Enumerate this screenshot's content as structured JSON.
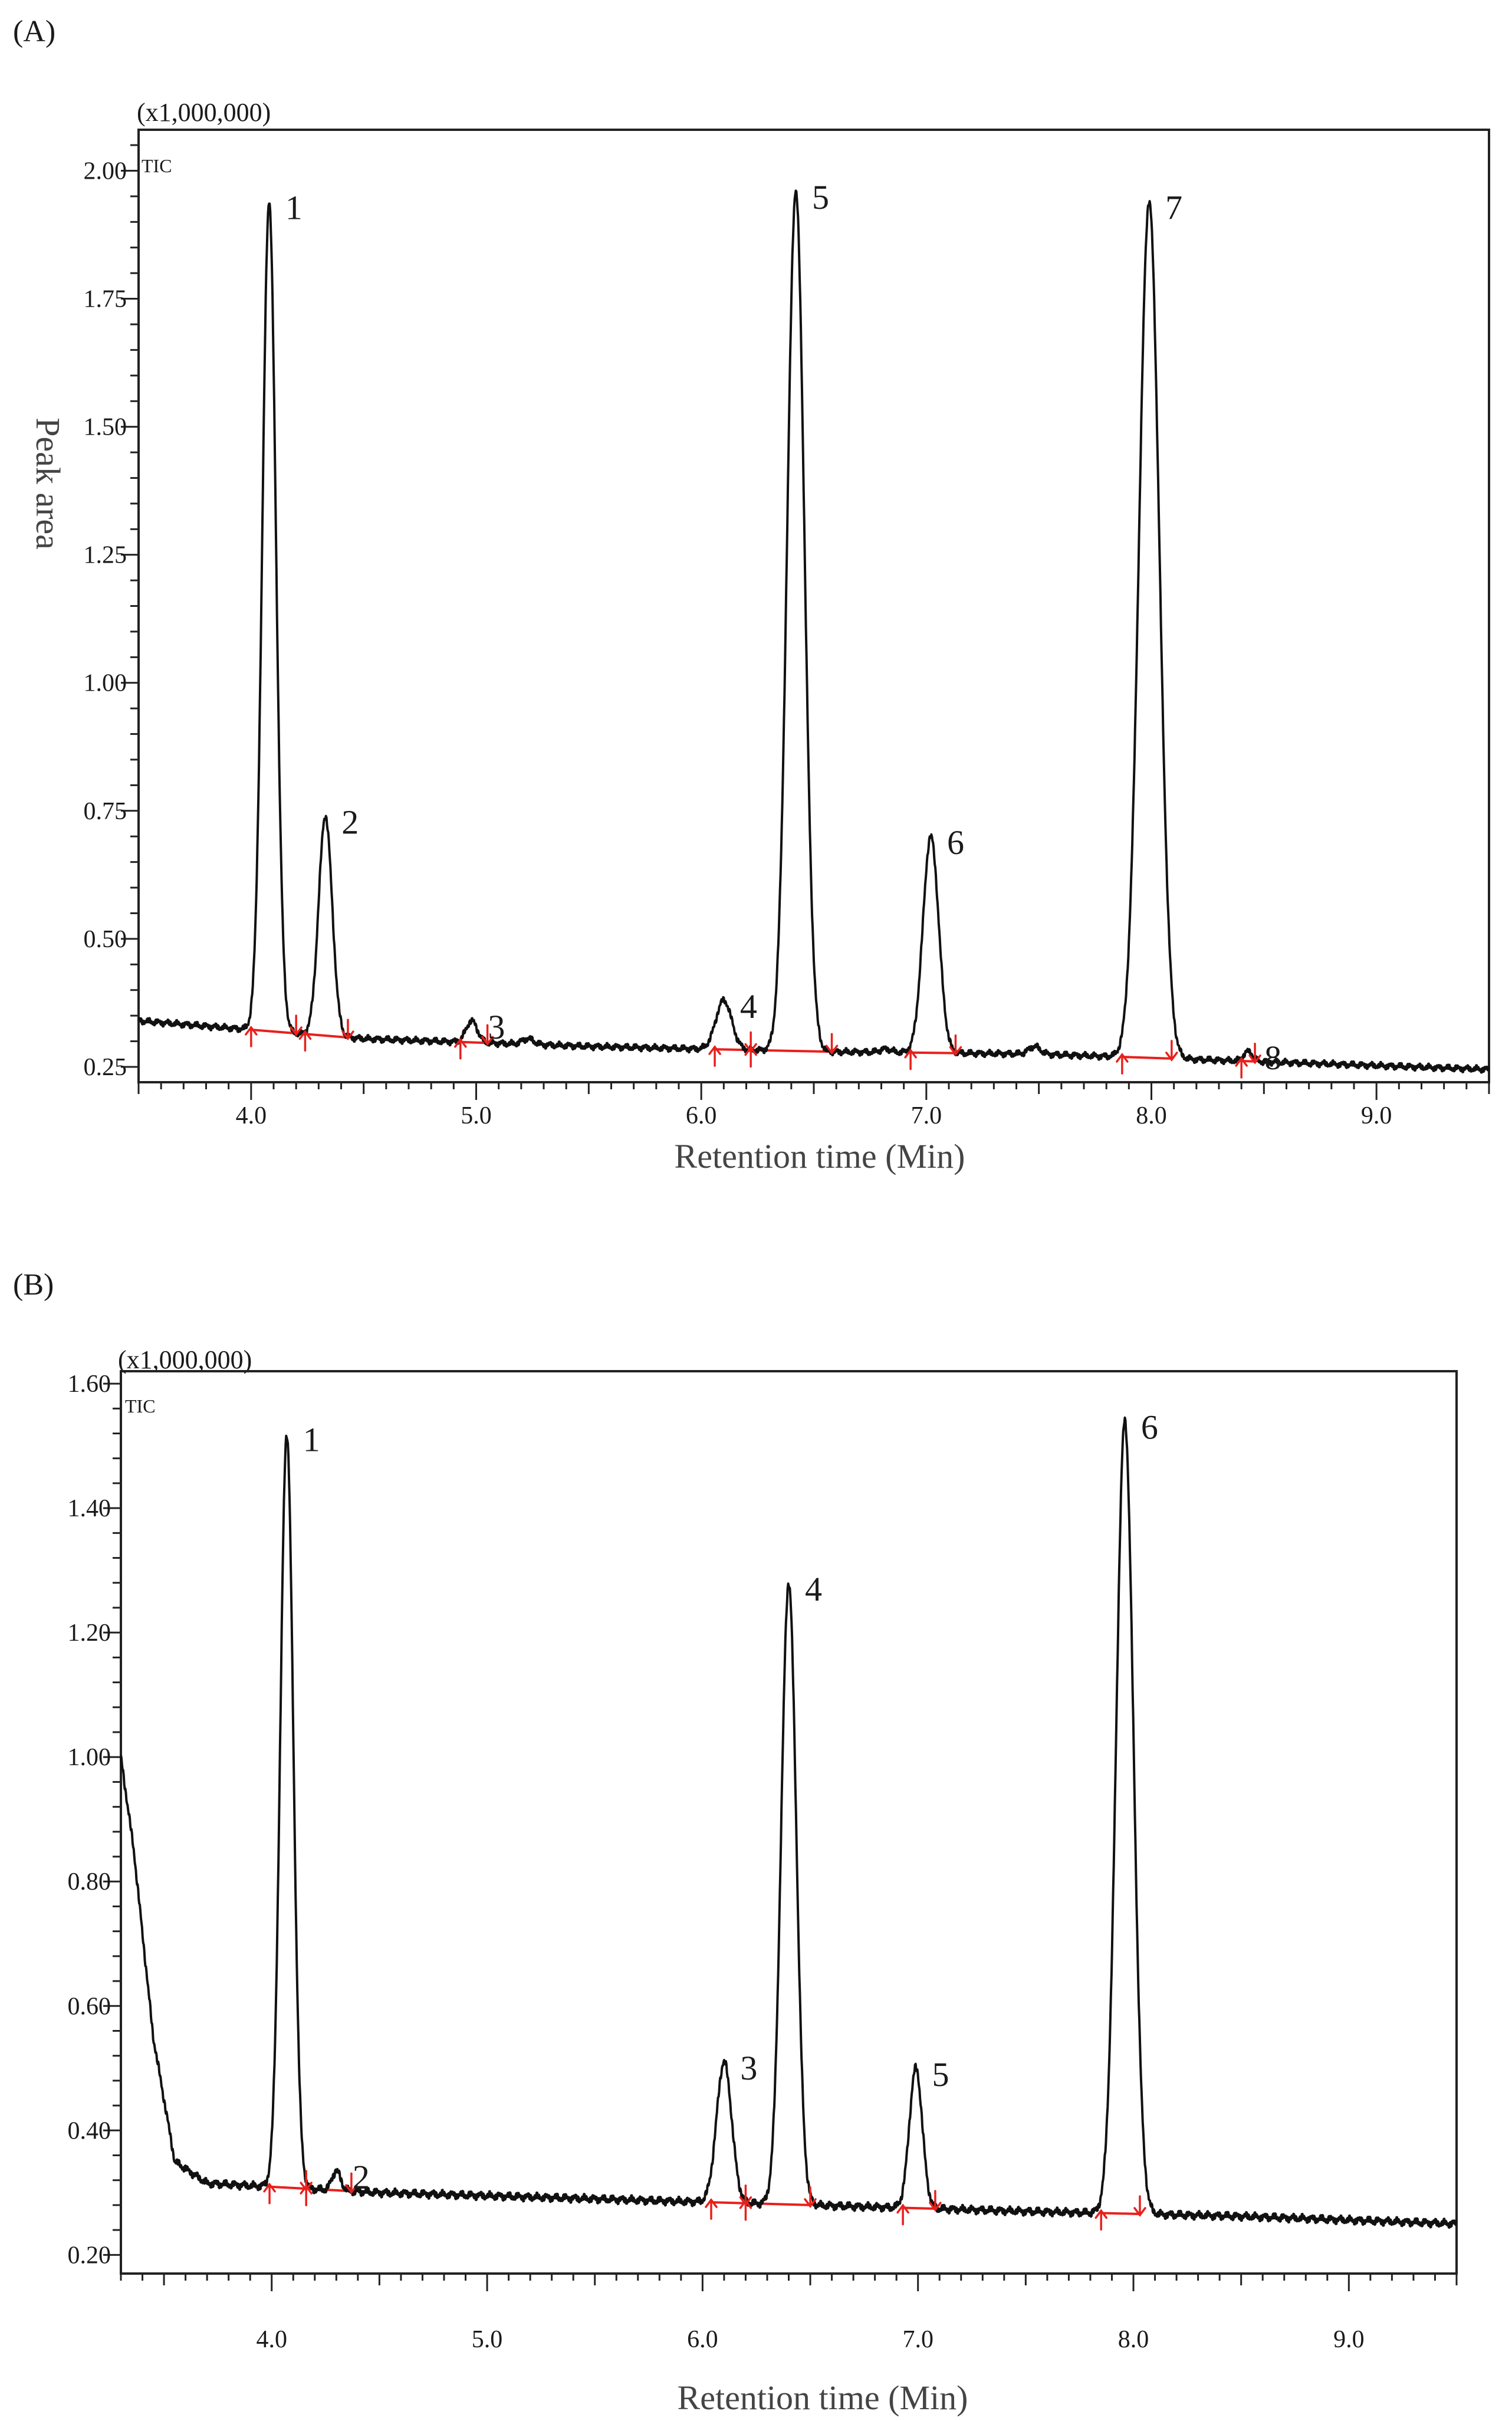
{
  "chart_data": [
    {
      "panel": "(A)",
      "type": "line",
      "scale_label": "(x1,000,000)",
      "trace_label": "TIC",
      "xlabel": "Retention time (Min)",
      "ylabel": "Peak area",
      "xlim": [
        3.5,
        9.5
      ],
      "ylim": [
        0.22,
        2.08
      ],
      "xticks": [
        "4.0",
        "5.0",
        "6.0",
        "7.0",
        "8.0",
        "9.0"
      ],
      "yticks": [
        "0.25",
        "0.50",
        "0.75",
        "1.00",
        "1.25",
        "1.50",
        "1.75",
        "2.00"
      ],
      "background": [
        [
          3.5,
          0.34
        ],
        [
          4.5,
          0.305
        ],
        [
          5.5,
          0.29
        ],
        [
          6.5,
          0.28
        ],
        [
          7.5,
          0.275
        ],
        [
          8.5,
          0.26
        ],
        [
          9.5,
          0.245
        ]
      ],
      "peaks": [
        {
          "label": "1",
          "rt": 4.08,
          "height": 1.94,
          "width": 0.03
        },
        {
          "label": "2",
          "rt": 4.33,
          "height": 0.74,
          "width": 0.03
        },
        {
          "label": "3",
          "rt": 4.98,
          "height": 0.34,
          "width": 0.025
        },
        {
          "label": "",
          "rt": 5.23,
          "height": 0.305,
          "width": 0.025
        },
        {
          "label": "4",
          "rt": 6.1,
          "height": 0.38,
          "width": 0.035
        },
        {
          "label": "5",
          "rt": 6.42,
          "height": 1.96,
          "width": 0.038
        },
        {
          "label": "",
          "rt": 6.82,
          "height": 0.285,
          "width": 0.025
        },
        {
          "label": "6",
          "rt": 7.02,
          "height": 0.7,
          "width": 0.035
        },
        {
          "label": "",
          "rt": 7.48,
          "height": 0.29,
          "width": 0.025
        },
        {
          "label": "7",
          "rt": 7.99,
          "height": 1.94,
          "width": 0.045
        },
        {
          "label": "8",
          "rt": 8.43,
          "height": 0.28,
          "width": 0.02
        }
      ],
      "integration_windows": [
        [
          4.0,
          4.2
        ],
        [
          4.24,
          4.43
        ],
        [
          4.93,
          5.05
        ],
        [
          6.06,
          6.22
        ],
        [
          6.22,
          6.58
        ],
        [
          6.93,
          7.13
        ],
        [
          7.87,
          8.09
        ],
        [
          8.4,
          8.46
        ]
      ]
    },
    {
      "panel": "(B)",
      "type": "line",
      "scale_label": "(x1,000,000)",
      "trace_label": "TIC",
      "xlabel": "Retention time (Min)",
      "ylabel": "",
      "xlim": [
        3.3,
        9.5
      ],
      "ylim": [
        0.17,
        1.62
      ],
      "xticks": [
        "4.0",
        "5.0",
        "6.0",
        "7.0",
        "8.0",
        "9.0"
      ],
      "yticks": [
        "0.20",
        "0.40",
        "0.60",
        "0.80",
        "1.00",
        "1.20",
        "1.40",
        "1.60"
      ],
      "background": [
        [
          3.3,
          1.0
        ],
        [
          3.36,
          0.85
        ],
        [
          3.45,
          0.55
        ],
        [
          3.55,
          0.35
        ],
        [
          3.7,
          0.315
        ],
        [
          4.5,
          0.3
        ],
        [
          5.5,
          0.29
        ],
        [
          6.5,
          0.28
        ],
        [
          7.5,
          0.27
        ],
        [
          8.5,
          0.262
        ],
        [
          9.5,
          0.25
        ]
      ],
      "peaks": [
        {
          "label": "1",
          "rt": 4.07,
          "height": 1.52,
          "width": 0.03
        },
        {
          "label": "2",
          "rt": 4.3,
          "height": 0.335,
          "width": 0.02
        },
        {
          "label": "3",
          "rt": 6.1,
          "height": 0.51,
          "width": 0.035
        },
        {
          "label": "4",
          "rt": 6.4,
          "height": 1.28,
          "width": 0.035
        },
        {
          "label": "5",
          "rt": 6.99,
          "height": 0.5,
          "width": 0.03
        },
        {
          "label": "6",
          "rt": 7.96,
          "height": 1.54,
          "width": 0.04
        }
      ],
      "integration_windows": [
        [
          3.99,
          4.16
        ],
        [
          4.16,
          4.37
        ],
        [
          6.04,
          6.2
        ],
        [
          6.2,
          6.5
        ],
        [
          6.93,
          7.08
        ],
        [
          7.85,
          8.03
        ]
      ]
    }
  ]
}
